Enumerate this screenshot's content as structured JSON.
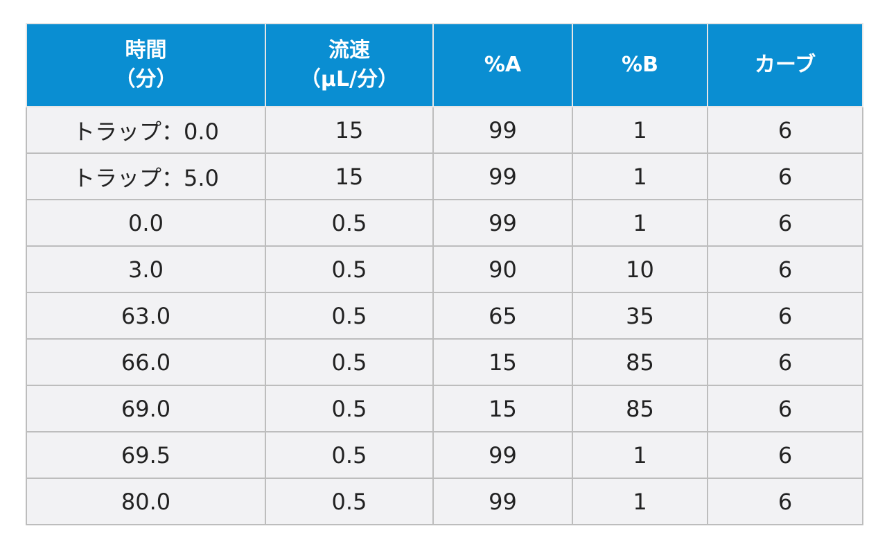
{
  "table": {
    "headers": [
      {
        "line1": "時間",
        "line2": "（分）"
      },
      {
        "line1": "流速",
        "line2": "（µL/分）"
      },
      {
        "line1": "%A",
        "line2": ""
      },
      {
        "line1": "%B",
        "line2": ""
      },
      {
        "line1": "カーブ",
        "line2": ""
      }
    ],
    "rows": [
      [
        "トラップ：0.0",
        "15",
        "99",
        "1",
        "6"
      ],
      [
        "トラップ：5.0",
        "15",
        "99",
        "1",
        "6"
      ],
      [
        "0.0",
        "0.5",
        "99",
        "1",
        "6"
      ],
      [
        "3.0",
        "0.5",
        "90",
        "10",
        "6"
      ],
      [
        "63.0",
        "0.5",
        "65",
        "35",
        "6"
      ],
      [
        "66.0",
        "0.5",
        "15",
        "85",
        "6"
      ],
      [
        "69.0",
        "0.5",
        "15",
        "85",
        "6"
      ],
      [
        "69.5",
        "0.5",
        "99",
        "1",
        "6"
      ],
      [
        "80.0",
        "0.5",
        "99",
        "1",
        "6"
      ]
    ]
  },
  "colors": {
    "header_bg": "#0a8ed2",
    "header_text": "#ffffff",
    "cell_bg": "#f2f2f4",
    "border": "#bdbdbd"
  }
}
